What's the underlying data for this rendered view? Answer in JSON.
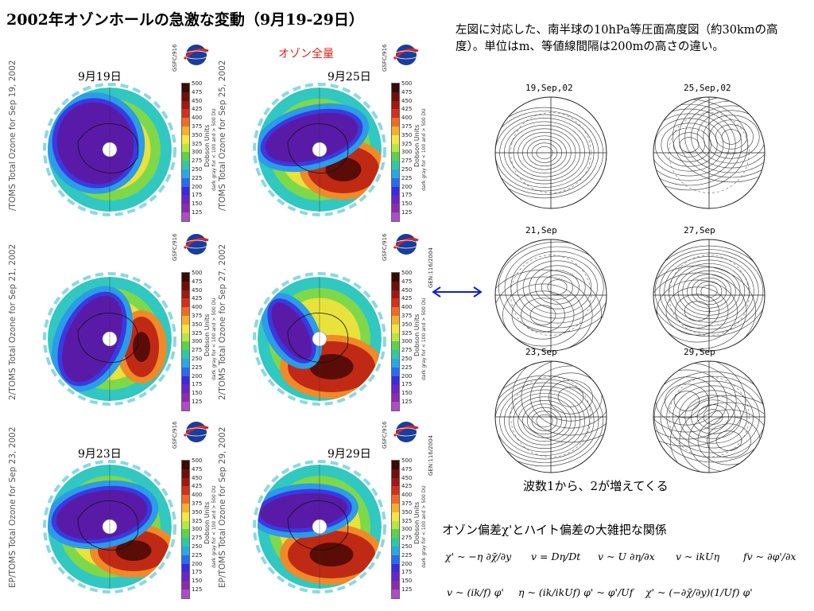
{
  "title": "2002年オゾンホールの急激な変動（9月19-29日）",
  "ozone_label": "オゾン全量",
  "right_description": "左図に対応した、南半球の10hPa等圧面高度図（約30kmの高度）。単位はm、等値線間隔は200mの高さの違い。",
  "ozone_panels": [
    {
      "date_label": "9月19日",
      "side_label": "/TOMS Total Ozone for Sep 19, 2002",
      "gsfc": "GSFC/916",
      "note": ""
    },
    {
      "date_label": "9月25日",
      "side_label": "/TOMS Total Ozone for Sep 25, 2002",
      "gsfc": "GSFC/916",
      "note": ""
    },
    {
      "date_label": "",
      "side_label": "2/TOMS Total Ozone for Sep 21, 2002",
      "gsfc": "GSFC/916",
      "note": ""
    },
    {
      "date_label": "",
      "side_label": "2/TOMS Total Ozone for Sep 27, 2002",
      "gsfc": "GSFC/916",
      "note": "GEN:116/2004"
    },
    {
      "date_label": "9月23日",
      "side_label": "EP/TOMS Total Ozone for Sep 23, 2002",
      "gsfc": "GSFC/916",
      "note": ""
    },
    {
      "date_label": "9月29日",
      "side_label": "EP/TOMS Total Ozone for Sep 29, 2002",
      "gsfc": "GSFC/916",
      "note": "GEN:116/2004"
    }
  ],
  "colorbar": {
    "title": "Dobson Units",
    "note": "dark gray for < 100 and > 500 DU",
    "ticks": [
      "500",
      "475",
      "450",
      "425",
      "400",
      "375",
      "350",
      "325",
      "300",
      "275",
      "250",
      "225",
      "200",
      "175",
      "150",
      "125"
    ],
    "colors": [
      "#3a0a05",
      "#6e1008",
      "#a01810",
      "#d0301c",
      "#f06a24",
      "#f5b02c",
      "#f5e640",
      "#b8e640",
      "#5cd24a",
      "#30c8a0",
      "#28a8e8",
      "#2a6cf0",
      "#3a2ae0",
      "#6a24c8",
      "#8c2ab0",
      "#b04ac8"
    ]
  },
  "contour_maps": [
    {
      "label": "19,Sep,02"
    },
    {
      "label": "25,Sep,02"
    },
    {
      "label": "21,Sep"
    },
    {
      "label": "27,Sep"
    },
    {
      "label": "23,Sep"
    },
    {
      "label": "29,Sep"
    }
  ],
  "wave_note": "波数1から、2が増えてくる",
  "relation_title": "オゾン偏差χ'とハイト偏差の大雑把な関係",
  "equations": [
    "χ' ~ −η ∂χ̄/∂y",
    "v = Dη/Dt",
    "v ~ U ∂η/∂x",
    "v ~ ikUη",
    "fv ~ ∂φ'/∂x",
    "v ~ (ik/f) φ'",
    "η ~ (ik/ikUf) φ' ~ φ'/Uf",
    "χ' ~ (−∂χ̄/∂y)(1/Uf) φ'"
  ]
}
